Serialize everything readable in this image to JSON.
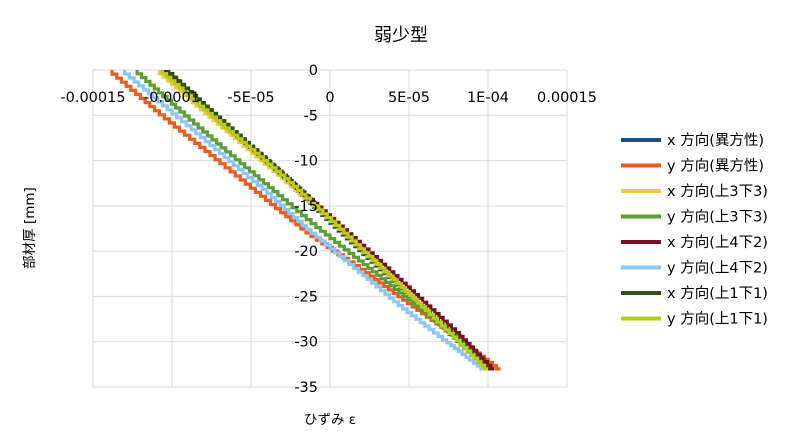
{
  "chart_data": {
    "type": "line",
    "title": "弱少型",
    "xlabel": "ひずみ ε",
    "ylabel": "部材厚 [mm]",
    "xlim": [
      -0.00015,
      0.00015
    ],
    "ylim": [
      -35,
      0
    ],
    "x_ticks": [
      -0.00015,
      -0.0001,
      -5e-05,
      0,
      5e-05,
      0.0001,
      0.00015
    ],
    "x_tick_labels": [
      "-0.00015",
      "-0.0001",
      "-5E-05",
      "0",
      "5E-05",
      "1E-04",
      "0.00015"
    ],
    "y_ticks": [
      0,
      -5,
      -10,
      -15,
      -20,
      -25,
      -30,
      -35
    ],
    "y_tick_labels": [
      "0",
      "-5",
      "-10",
      "-15",
      "-20",
      "-25",
      "-30",
      "-35"
    ],
    "grid": true,
    "legend_position": "right",
    "series": [
      {
        "name": "x 方向(異方性)",
        "color": "#1f4e79",
        "x": [
          -0.000103,
          -7.8e-05,
          -5.2e-05,
          -2.6e-05,
          0.0,
          2.6e-05,
          5.2e-05,
          7.8e-05,
          0.0001
        ],
        "y": [
          0,
          -4,
          -8,
          -12,
          -16.5,
          -20.8,
          -25,
          -29.2,
          -33
        ]
      },
      {
        "name": "y 方向(異方性)",
        "color": "#ed5a1f",
        "x": [
          -0.000138,
          -0.000108,
          -7.6e-05,
          -4.4e-05,
          -1.2e-05,
          2.2e-05,
          5.2e-05,
          8.2e-05,
          0.000108
        ],
        "y": [
          0,
          -4.5,
          -9,
          -13.5,
          -18,
          -22,
          -25.8,
          -29.5,
          -33
        ]
      },
      {
        "name": "x 方向(上3下3)",
        "color": "#f5c542",
        "x": [
          -0.000108,
          -8.2e-05,
          -5.5e-05,
          -2.8e-05,
          0.0,
          2.6e-05,
          5.2e-05,
          7.8e-05,
          0.000102
        ],
        "y": [
          0,
          -4,
          -8,
          -12,
          -16.3,
          -20.6,
          -24.9,
          -29.1,
          -33
        ]
      },
      {
        "name": "y 方向(上3下3)",
        "color": "#5c9e31",
        "x": [
          -0.000122,
          -9.5e-05,
          -6.6e-05,
          -3.6e-05,
          -6e-06,
          2.4e-05,
          5.2e-05,
          8e-05,
          0.000104
        ],
        "y": [
          0,
          -4.2,
          -8.6,
          -13,
          -17.4,
          -21.5,
          -25.4,
          -29.3,
          -33
        ]
      },
      {
        "name": "x 方向(上4下2)",
        "color": "#7b0e26",
        "x": [
          -0.000104,
          -7.8e-05,
          -5.1e-05,
          -2.4e-05,
          3e-06,
          3e-05,
          5.6e-05,
          8.2e-05,
          0.000104
        ],
        "y": [
          0,
          -4,
          -8.1,
          -12.2,
          -16.4,
          -20.6,
          -24.8,
          -29,
          -33
        ]
      },
      {
        "name": "y 方向(上4下2)",
        "color": "#8cc6f2",
        "x": [
          -0.00013,
          -0.0001,
          -7e-05,
          -4e-05,
          -1.2e-05,
          1.8e-05,
          4.6e-05,
          7.4e-05,
          9.8e-05
        ],
        "y": [
          0,
          -4.4,
          -8.8,
          -13.2,
          -17.6,
          -21.9,
          -26,
          -29.8,
          -33
        ]
      },
      {
        "name": "x 方向(上1下1)",
        "color": "#2f4f1c",
        "x": [
          -0.000102,
          -7.7e-05,
          -5.1e-05,
          -2.5e-05,
          1e-06,
          2.7e-05,
          5.3e-05,
          7.9e-05,
          0.000101
        ],
        "y": [
          0,
          -4,
          -8,
          -12,
          -16.4,
          -20.7,
          -24.9,
          -29.1,
          -33
        ]
      },
      {
        "name": "y 方向(上1下1)",
        "color": "#b8cc1a",
        "x": [
          -0.000106,
          -8e-05,
          -5.3e-05,
          -2.6e-05,
          1e-06,
          2.7e-05,
          5.3e-05,
          7.8e-05,
          0.0001
        ],
        "y": [
          0,
          -4,
          -8,
          -12,
          -16.3,
          -20.6,
          -24.9,
          -29.1,
          -33
        ]
      }
    ]
  }
}
